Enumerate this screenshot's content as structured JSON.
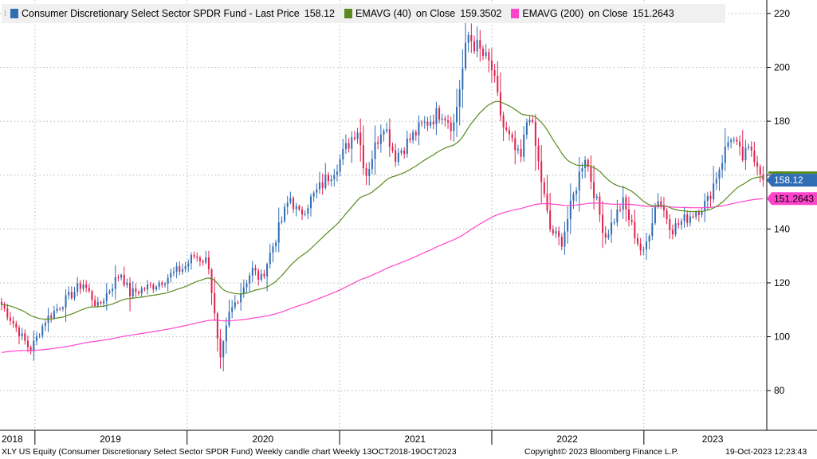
{
  "legend": {
    "main": "Consumer Discretionary Select Sector SPDR Fund - Last Price",
    "main_value": "158.12",
    "ema40": "EMAVG (40)",
    "ema40_on": "on Close",
    "ema40_value": "159.3502",
    "ema200": "EMAVG (200)",
    "ema200_on": "on Close",
    "ema200_value": "151.2643"
  },
  "footer": {
    "left": "XLY US Equity (Consumer Discretionary Select Sector SPDR Fund) Weekly candle chart  Weekly 13OCT2018-19OCT2023",
    "center": "Copyright© 2023 Bloomberg Finance L.P.",
    "right": "19-Oct-2023 12:23:43"
  },
  "colors": {
    "up": "#2f6db5",
    "down": "#e0234e",
    "ema40": "#5a8a1e",
    "ema200": "#ff44cc",
    "last_tag": "#2f6db5",
    "ema200_tag": "#ff44cc"
  },
  "chart_data": {
    "type": "candlestick",
    "x_start": "2018-10-13",
    "x_end": "2023-10-19",
    "x_labels": [
      "2018",
      "2019",
      "2020",
      "2021",
      "2022",
      "2023"
    ],
    "y_ticks": [
      80,
      100,
      120,
      140,
      160,
      180,
      200,
      220
    ],
    "ylim": [
      70,
      225
    ],
    "grid": true,
    "axis_position": "right",
    "last_price_tag": "158.12",
    "ema200_tag": "151.2643",
    "ema40_last": 159.3502,
    "ema200_last": 151.2643,
    "close_keypoints": [
      [
        "2018-10-13",
        112
      ],
      [
        "2018-12-21",
        95
      ],
      [
        "2019-01-25",
        106
      ],
      [
        "2019-04-26",
        120
      ],
      [
        "2019-06-01",
        111
      ],
      [
        "2019-07-26",
        124
      ],
      [
        "2019-08-16",
        116
      ],
      [
        "2019-10-11",
        119
      ],
      [
        "2019-12-27",
        126
      ],
      [
        "2020-01-17",
        130
      ],
      [
        "2020-02-21",
        128
      ],
      [
        "2020-03-20",
        90
      ],
      [
        "2020-04-10",
        108
      ],
      [
        "2020-06-05",
        125
      ],
      [
        "2020-06-26",
        121
      ],
      [
        "2020-09-04",
        152
      ],
      [
        "2020-09-25",
        145
      ],
      [
        "2020-12-31",
        165
      ],
      [
        "2021-02-12",
        178
      ],
      [
        "2021-03-05",
        160
      ],
      [
        "2021-04-16",
        180
      ],
      [
        "2021-05-14",
        167
      ],
      [
        "2021-07-16",
        178
      ],
      [
        "2021-09-03",
        184
      ],
      [
        "2021-10-01",
        178
      ],
      [
        "2021-11-05",
        212
      ],
      [
        "2021-12-31",
        200
      ],
      [
        "2022-01-28",
        178
      ],
      [
        "2022-03-11",
        165
      ],
      [
        "2022-03-31",
        185
      ],
      [
        "2022-05-20",
        140
      ],
      [
        "2022-06-17",
        135
      ],
      [
        "2022-08-12",
        168
      ],
      [
        "2022-09-30",
        137
      ],
      [
        "2022-11-11",
        150
      ],
      [
        "2022-12-30",
        130
      ],
      [
        "2023-02-03",
        152
      ],
      [
        "2023-03-10",
        140
      ],
      [
        "2023-06-02",
        150
      ],
      [
        "2023-07-28",
        175
      ],
      [
        "2023-08-25",
        166
      ],
      [
        "2023-09-15",
        170
      ],
      [
        "2023-10-19",
        158.12
      ]
    ]
  }
}
